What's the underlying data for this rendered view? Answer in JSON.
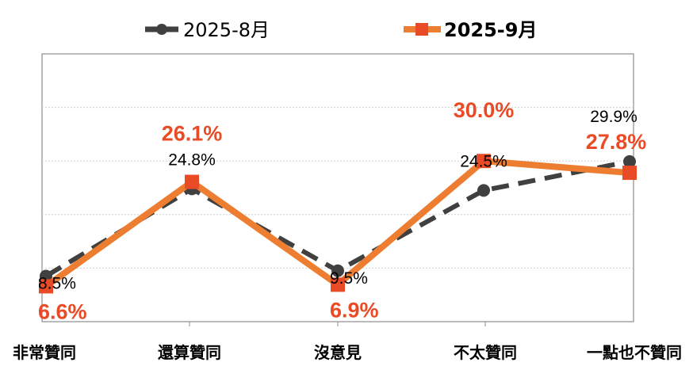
{
  "chart_data": {
    "type": "line",
    "categories": [
      "非常贊同",
      "還算贊同",
      "沒意見",
      "不太贊同",
      "一點也不贊同"
    ],
    "series": [
      {
        "name": "2025-8月",
        "values": [
          8.5,
          24.8,
          9.5,
          24.5,
          29.9
        ],
        "labels": [
          "8.5%",
          "24.8%",
          "9.5%",
          "24.5%",
          "29.9%"
        ],
        "color": "#404040",
        "style": "dashed",
        "marker": "circle"
      },
      {
        "name": "2025-9月",
        "values": [
          6.6,
          26.1,
          6.9,
          30.0,
          27.8
        ],
        "labels": [
          "6.6%",
          "26.1%",
          "6.9%",
          "30.0%",
          "27.8%"
        ],
        "color": "#ED7D31",
        "marker_color": "#E84B25",
        "label_color": "#E84B25",
        "style": "solid",
        "marker": "square"
      }
    ],
    "ylim": [
      0,
      50
    ],
    "grid": "horizontal",
    "legend": "top"
  }
}
